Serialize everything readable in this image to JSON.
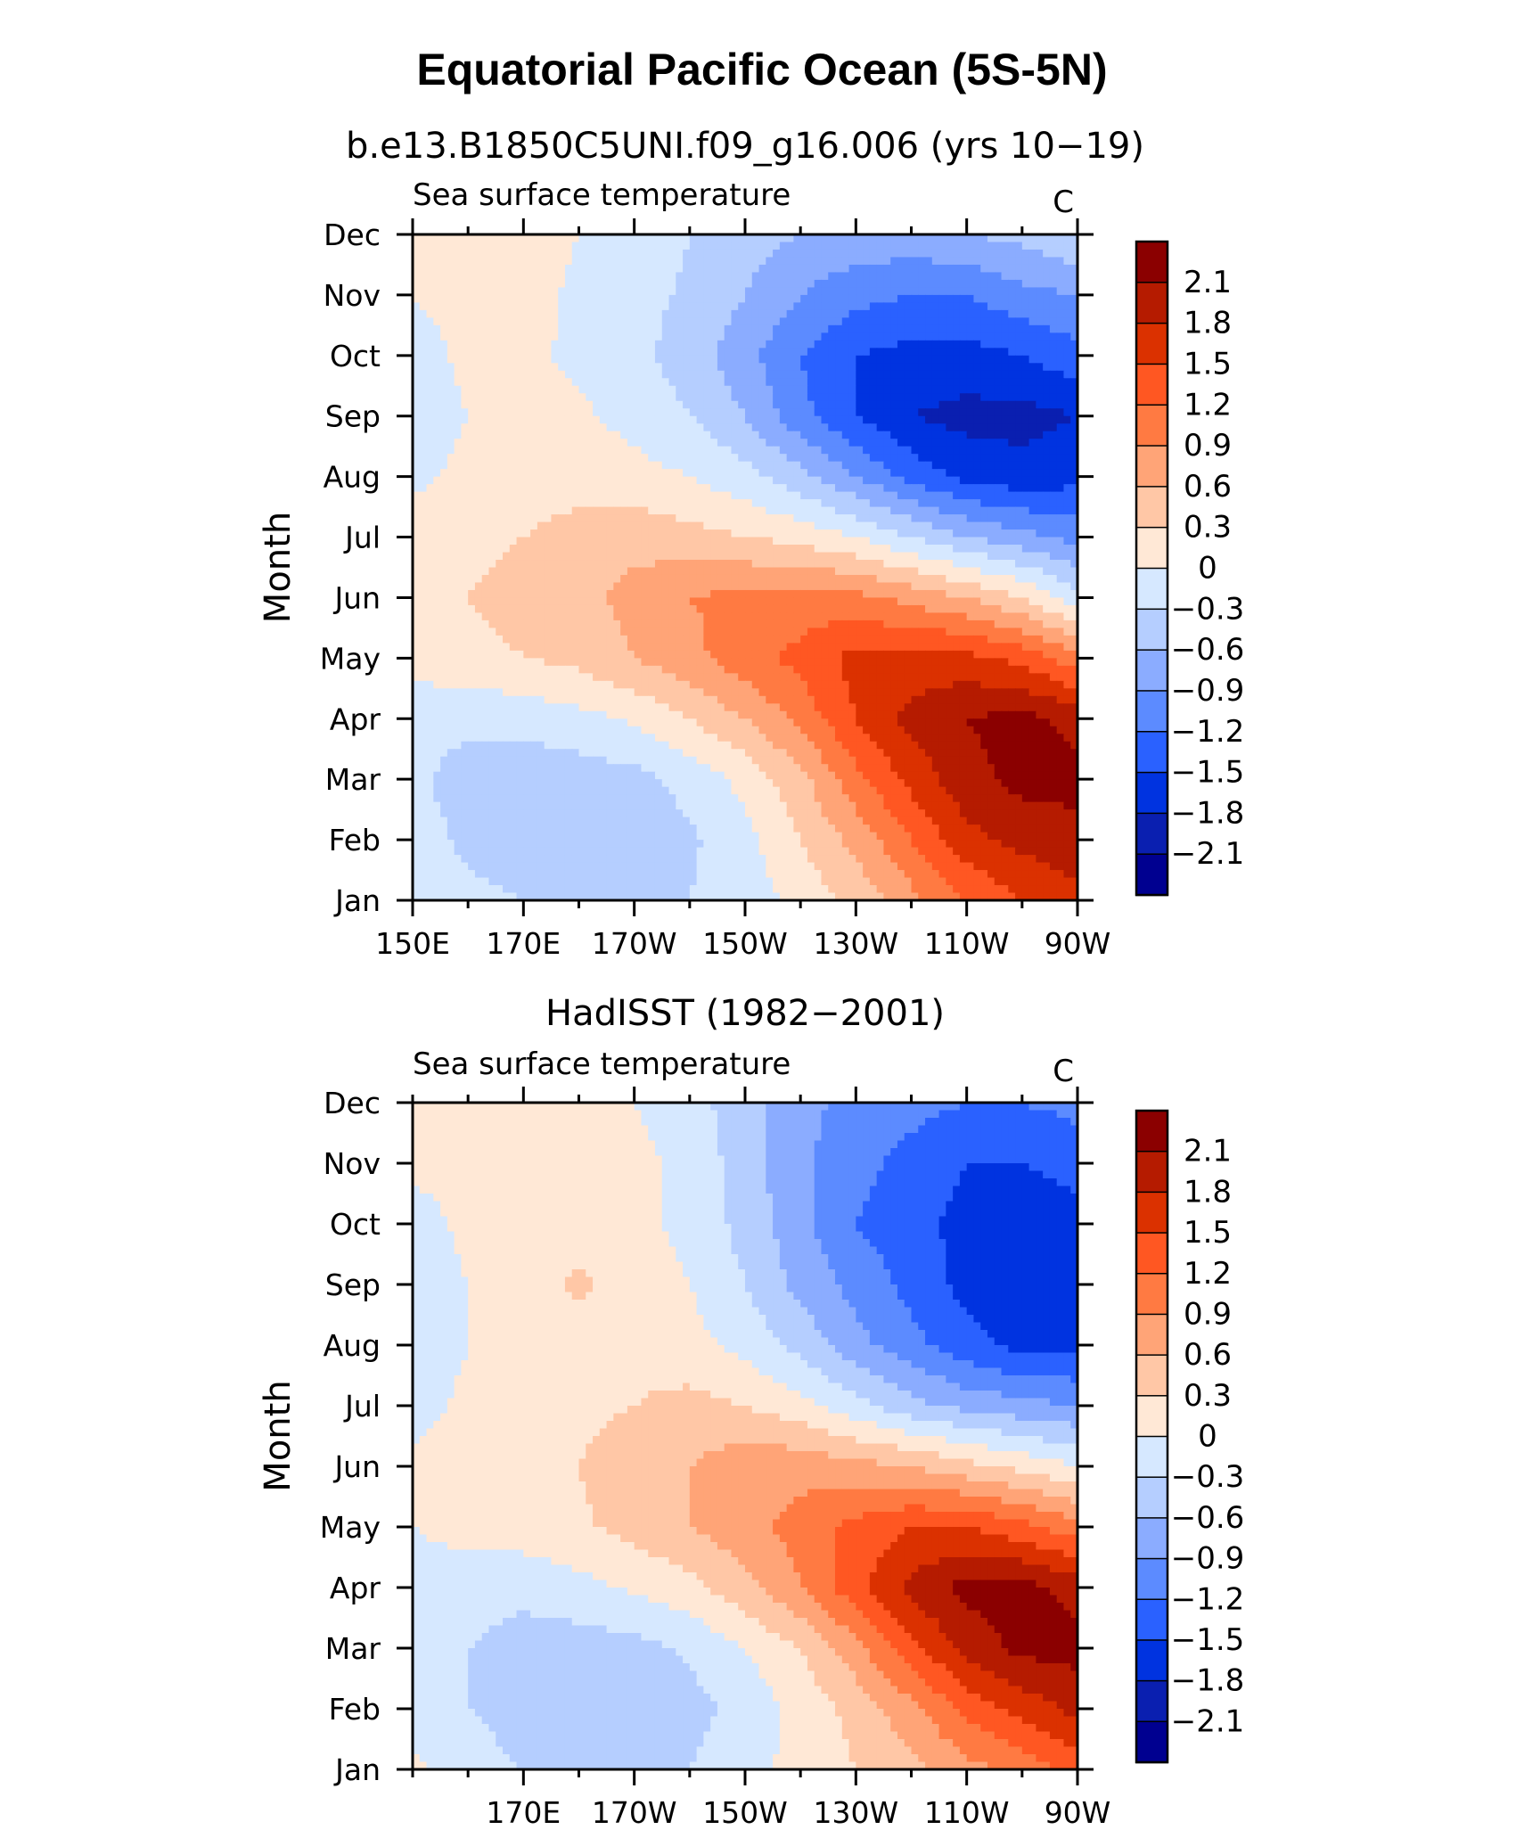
{
  "figure_title": "Equatorial Pacific Ocean (5S-5N)",
  "colorbar": {
    "labels": [
      "2.1",
      "1.8",
      "1.5",
      "1.2",
      "0.9",
      "0.6",
      "0.3",
      "0",
      "−0.3",
      "−0.6",
      "−0.9",
      "−1.2",
      "−1.5",
      "−1.8",
      "−2.1"
    ],
    "colors": [
      "#8b0000",
      "#b51b00",
      "#db3100",
      "#ff5722",
      "#ff7a42",
      "#ffa477",
      "#ffc7a6",
      "#ffe8d6",
      "#d6e8ff",
      "#b5ceff",
      "#8bacff",
      "#5c8bff",
      "#2a61ff",
      "#0033e0",
      "#0a1fb0",
      "#000090"
    ]
  },
  "chart_data": [
    {
      "type": "heatmap",
      "title": "b.e13.B1850C5UNI.f09_g16.006 (yrs 10−19)",
      "left_string": "Sea surface temperature",
      "right_string": "C",
      "xlabel": "",
      "ylabel": "Month",
      "xlim": [
        150,
        270
      ],
      "x_units": "degrees east",
      "x_tick_values": [
        150,
        170,
        190,
        210,
        230,
        250,
        270
      ],
      "x_tick_labels": [
        "150E",
        "170E",
        "170W",
        "150W",
        "130W",
        "110W",
        "90W"
      ],
      "y_tick_labels": [
        "Jan",
        "Feb",
        "Mar",
        "Apr",
        "May",
        "Jun",
        "Jul",
        "Aug",
        "Sep",
        "Oct",
        "Nov",
        "Dec"
      ],
      "x": [
        150,
        160,
        170,
        180,
        190,
        200,
        210,
        220,
        230,
        240,
        250,
        260,
        270
      ],
      "y": [
        "Jan",
        "Feb",
        "Mar",
        "Apr",
        "May",
        "Jun",
        "Jul",
        "Aug",
        "Sep",
        "Oct",
        "Nov",
        "Dec"
      ],
      "values": [
        [
          -0.1,
          -0.2,
          -0.3,
          -0.4,
          -0.4,
          -0.3,
          -0.15,
          0.1,
          0.4,
          0.8,
          1.2,
          1.5,
          1.7
        ],
        [
          -0.1,
          -0.4,
          -0.5,
          -0.5,
          -0.5,
          -0.35,
          -0.1,
          0.3,
          0.7,
          1.2,
          1.7,
          1.9,
          2.0
        ],
        [
          -0.2,
          -0.5,
          -0.5,
          -0.45,
          -0.4,
          -0.2,
          0.1,
          0.5,
          1.1,
          1.6,
          2.0,
          2.2,
          2.2
        ],
        [
          -0.1,
          -0.2,
          -0.2,
          -0.1,
          0.05,
          0.3,
          0.6,
          1.0,
          1.5,
          1.9,
          2.1,
          2.2,
          2.0
        ],
        [
          0.05,
          0.2,
          0.3,
          0.4,
          0.6,
          0.8,
          1.1,
          1.3,
          1.6,
          1.6,
          1.6,
          1.4,
          1.0
        ],
        [
          0.1,
          0.3,
          0.4,
          0.5,
          0.7,
          0.9,
          1.0,
          1.0,
          1.0,
          0.8,
          0.6,
          0.3,
          -0.2
        ],
        [
          0.1,
          0.2,
          0.3,
          0.4,
          0.5,
          0.4,
          0.3,
          0.2,
          0.0,
          -0.3,
          -0.6,
          -0.8,
          -1.0
        ],
        [
          -0.05,
          0.05,
          0.15,
          0.2,
          0.1,
          0.0,
          -0.2,
          -0.5,
          -0.9,
          -1.3,
          -1.6,
          -1.7,
          -1.6
        ],
        [
          -0.1,
          0.0,
          0.05,
          0.05,
          -0.1,
          -0.3,
          -0.6,
          -1.1,
          -1.5,
          -1.8,
          -1.9,
          -1.9,
          -1.8
        ],
        [
          -0.1,
          0.05,
          0.05,
          -0.05,
          -0.2,
          -0.45,
          -0.8,
          -1.2,
          -1.5,
          -1.6,
          -1.6,
          -1.5,
          -1.3
        ],
        [
          0.0,
          0.1,
          0.1,
          -0.05,
          -0.2,
          -0.35,
          -0.6,
          -0.9,
          -1.1,
          -1.2,
          -1.2,
          -1.0,
          -0.9
        ],
        [
          0.05,
          0.1,
          0.1,
          0.0,
          -0.15,
          -0.3,
          -0.45,
          -0.6,
          -0.7,
          -0.7,
          -0.6,
          -0.5,
          -0.3
        ]
      ]
    },
    {
      "type": "heatmap",
      "title": "HadISST (1982−2001)",
      "left_string": "Sea surface temperature",
      "right_string": "C",
      "xlabel": "",
      "ylabel": "Month",
      "xlim": [
        150,
        270
      ],
      "x_units": "degrees east",
      "x_tick_values": [
        170,
        190,
        210,
        230,
        250,
        270
      ],
      "x_tick_labels": [
        "170E",
        "170W",
        "150W",
        "130W",
        "110W",
        "90W"
      ],
      "y_tick_labels": [
        "Jan",
        "Feb",
        "Mar",
        "Apr",
        "May",
        "Jun",
        "Jul",
        "Aug",
        "Sep",
        "Oct",
        "Nov",
        "Dec"
      ],
      "x": [
        150,
        160,
        170,
        180,
        190,
        200,
        210,
        220,
        230,
        240,
        250,
        260,
        270
      ],
      "y": [
        "Jan",
        "Feb",
        "Mar",
        "Apr",
        "May",
        "Jun",
        "Jul",
        "Aug",
        "Sep",
        "Oct",
        "Nov",
        "Dec"
      ],
      "values": [
        [
          0.05,
          -0.15,
          -0.3,
          -0.4,
          -0.4,
          -0.3,
          -0.1,
          0.1,
          0.3,
          0.5,
          0.8,
          1.0,
          1.3
        ],
        [
          -0.1,
          -0.3,
          -0.45,
          -0.5,
          -0.5,
          -0.4,
          -0.2,
          0.1,
          0.4,
          0.8,
          1.3,
          1.6,
          1.9
        ],
        [
          -0.1,
          -0.3,
          -0.45,
          -0.45,
          -0.4,
          -0.25,
          0.0,
          0.3,
          0.8,
          1.4,
          1.9,
          2.2,
          2.2
        ],
        [
          -0.1,
          -0.15,
          -0.2,
          -0.1,
          0.05,
          0.2,
          0.5,
          0.9,
          1.4,
          1.9,
          2.2,
          2.2,
          2.0
        ],
        [
          0.0,
          0.1,
          0.15,
          0.25,
          0.4,
          0.6,
          0.8,
          1.0,
          1.3,
          1.5,
          1.5,
          1.3,
          1.0
        ],
        [
          0.05,
          0.15,
          0.2,
          0.3,
          0.5,
          0.6,
          0.8,
          0.8,
          0.7,
          0.6,
          0.4,
          0.2,
          0.0
        ],
        [
          -0.1,
          0.05,
          0.1,
          0.2,
          0.3,
          0.4,
          0.3,
          0.1,
          -0.2,
          -0.5,
          -0.7,
          -0.8,
          -0.9
        ],
        [
          -0.15,
          0.0,
          0.1,
          0.15,
          0.2,
          0.1,
          -0.1,
          -0.4,
          -0.8,
          -1.1,
          -1.4,
          -1.6,
          -1.6
        ],
        [
          -0.15,
          0.0,
          0.2,
          0.35,
          0.2,
          0.0,
          -0.3,
          -0.7,
          -1.0,
          -1.3,
          -1.6,
          -1.8,
          -1.8
        ],
        [
          -0.1,
          0.05,
          0.15,
          0.15,
          0.1,
          -0.1,
          -0.4,
          -0.8,
          -1.2,
          -1.4,
          -1.6,
          -1.7,
          -1.6
        ],
        [
          0.05,
          0.1,
          0.15,
          0.15,
          0.1,
          -0.1,
          -0.45,
          -0.85,
          -1.1,
          -1.3,
          -1.5,
          -1.5,
          -1.4
        ],
        [
          0.05,
          0.1,
          0.15,
          0.1,
          0.0,
          -0.2,
          -0.45,
          -0.8,
          -1.0,
          -1.1,
          -1.2,
          -1.2,
          -1.1
        ]
      ]
    }
  ]
}
